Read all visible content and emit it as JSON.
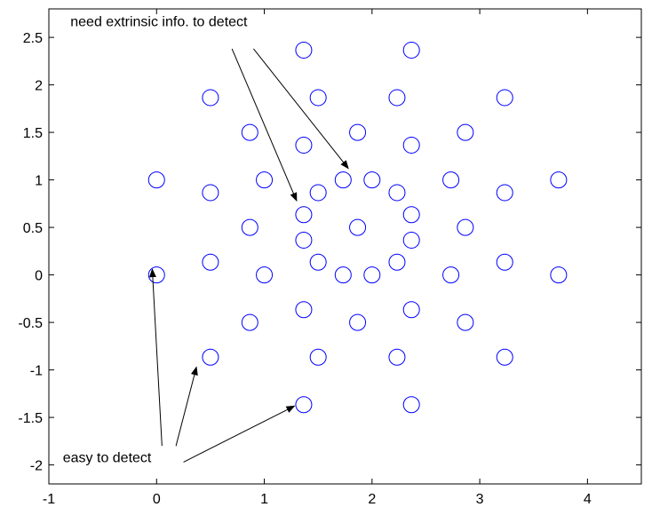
{
  "chart_data": {
    "type": "scatter",
    "title": "",
    "xlabel": "",
    "ylabel": "",
    "xlim": [
      -1,
      4.5
    ],
    "ylim": [
      -2.2,
      2.8
    ],
    "x_ticks": [
      -1,
      0,
      1,
      2,
      3,
      4
    ],
    "x_tick_labels": [
      "-1",
      "0",
      "1",
      "2",
      "3",
      "4"
    ],
    "y_ticks": [
      -2,
      -1.5,
      -1,
      -0.5,
      0,
      0.5,
      1,
      1.5,
      2,
      2.5
    ],
    "y_tick_labels": [
      "-2",
      "-1.5",
      "-1",
      "-0.5",
      "0",
      "0.5",
      "1",
      "1.5",
      "2",
      "2.5"
    ],
    "grid": false,
    "marker": "open-circle",
    "marker_color": "#0000ff",
    "points": [
      [
        0,
        1
      ],
      [
        0,
        0
      ],
      [
        0.5,
        1.866
      ],
      [
        0.5,
        0.866
      ],
      [
        0.5,
        0.134
      ],
      [
        0.5,
        -0.866
      ],
      [
        0.866,
        1.5
      ],
      [
        0.866,
        0.5
      ],
      [
        0.866,
        -0.5
      ],
      [
        1,
        1
      ],
      [
        1,
        0
      ],
      [
        1.366,
        2.366
      ],
      [
        1.366,
        1.366
      ],
      [
        1.366,
        0.634
      ],
      [
        1.366,
        0.366
      ],
      [
        1.366,
        -0.366
      ],
      [
        1.366,
        -1.366
      ],
      [
        1.5,
        1.866
      ],
      [
        1.5,
        0.866
      ],
      [
        1.5,
        0.134
      ],
      [
        1.5,
        -0.866
      ],
      [
        1.732,
        1
      ],
      [
        1.732,
        0
      ],
      [
        1.866,
        1.5
      ],
      [
        1.866,
        0.5
      ],
      [
        1.866,
        -0.5
      ],
      [
        2,
        1
      ],
      [
        2,
        0
      ],
      [
        2.232,
        1.866
      ],
      [
        2.232,
        0.866
      ],
      [
        2.232,
        0.134
      ],
      [
        2.232,
        -0.866
      ],
      [
        2.366,
        2.366
      ],
      [
        2.366,
        1.366
      ],
      [
        2.366,
        0.634
      ],
      [
        2.366,
        0.366
      ],
      [
        2.366,
        -0.366
      ],
      [
        2.366,
        -1.366
      ],
      [
        2.732,
        1
      ],
      [
        2.732,
        0
      ],
      [
        2.866,
        1.5
      ],
      [
        2.866,
        0.5
      ],
      [
        2.866,
        -0.5
      ],
      [
        3.232,
        1.866
      ],
      [
        3.232,
        0.866
      ],
      [
        3.232,
        0.134
      ],
      [
        3.232,
        -0.866
      ],
      [
        3.732,
        1
      ],
      [
        3.732,
        0
      ]
    ],
    "annotations": [
      {
        "text": "need extrinsic info. to detect",
        "text_at": [
          -0.8,
          2.62
        ],
        "arrows": [
          {
            "from": [
              0.7,
              2.38
            ],
            "to": [
              1.3,
              0.78
            ]
          },
          {
            "from": [
              0.9,
              2.38
            ],
            "to": [
              1.78,
              1.12
            ]
          }
        ]
      },
      {
        "text": "easy to detect",
        "text_at": [
          -0.87,
          -1.97
        ],
        "arrows": [
          {
            "from": [
              0.05,
              -1.8
            ],
            "to": [
              -0.04,
              0.06
            ]
          },
          {
            "from": [
              0.18,
              -1.8
            ],
            "to": [
              0.37,
              -0.97
            ]
          },
          {
            "from": [
              0.25,
              -1.97
            ],
            "to": [
              1.28,
              -1.38
            ]
          }
        ]
      }
    ]
  }
}
